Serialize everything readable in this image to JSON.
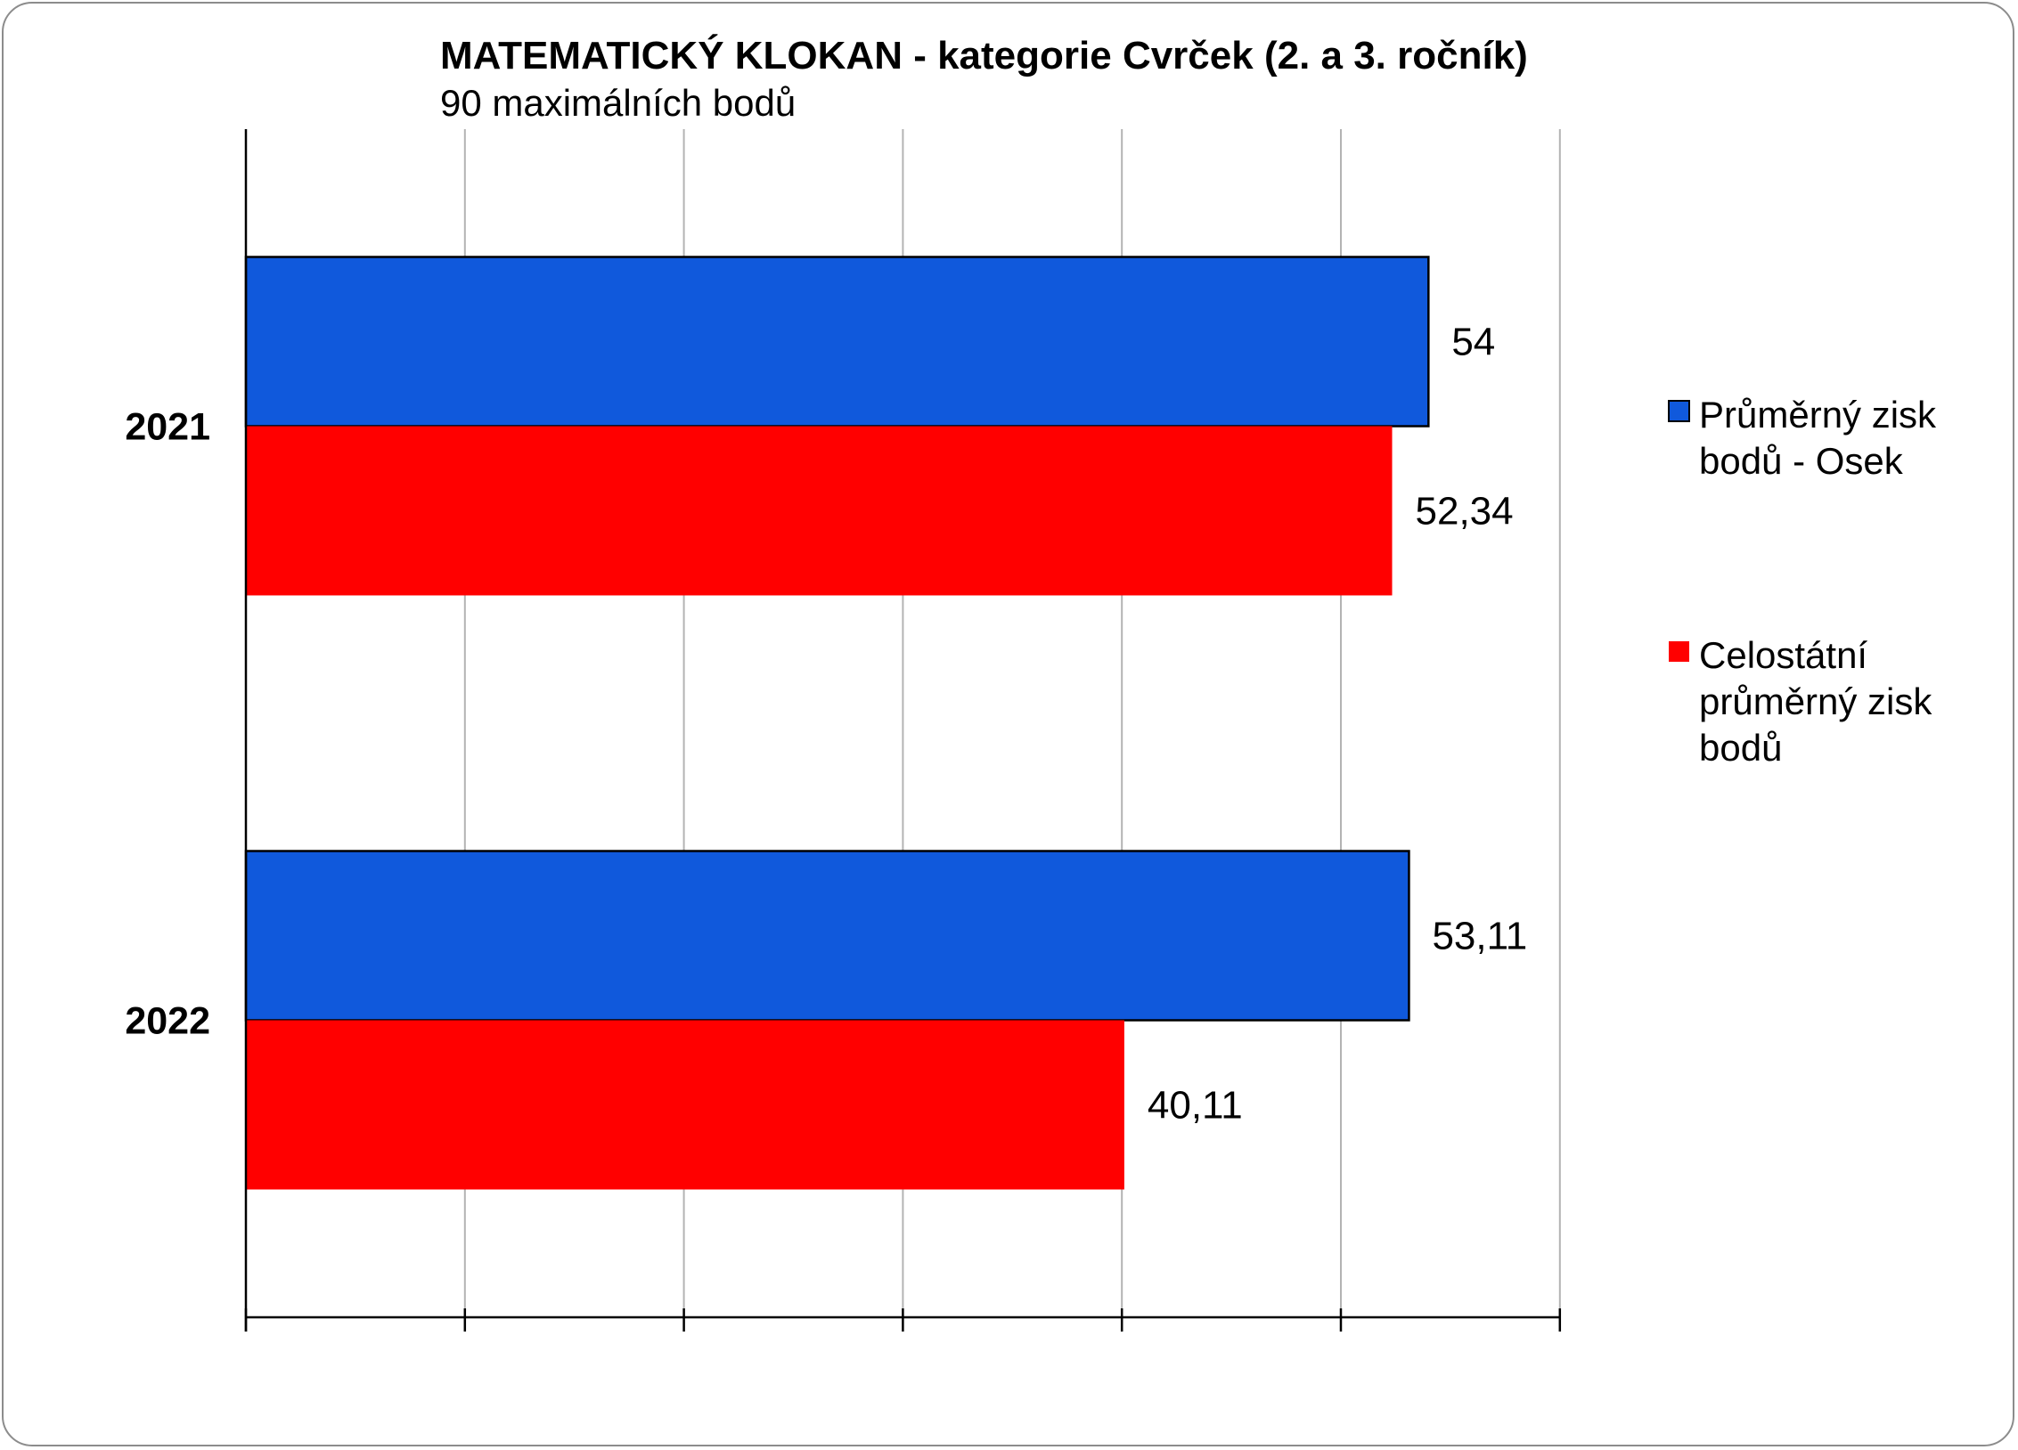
{
  "chart_data": {
    "type": "bar",
    "orientation": "horizontal",
    "title": "MATEMATICKÝ KLOKAN - kategorie Cvrček (2. a 3. ročník)",
    "subtitle": "90 maximálních bodů",
    "categories": [
      "2021",
      "2022"
    ],
    "series": [
      {
        "name": "Průměrný zisk bodů - Osek",
        "name_lines": [
          "Průměrný zisk",
          "bodů - Osek"
        ],
        "color": "#1059dc",
        "values": [
          54,
          53.11
        ],
        "labels": [
          "54",
          "53,11"
        ]
      },
      {
        "name": " Celostátní průměrný zisk bodů",
        "name_lines": [
          " Celostátní",
          "průměrný zisk",
          "bodů"
        ],
        "color": "#ff0000",
        "values": [
          52.34,
          40.11
        ],
        "labels": [
          "52,34",
          "40,11"
        ]
      }
    ],
    "xlim": [
      0,
      60
    ],
    "grid": true,
    "legend_position": "right"
  }
}
